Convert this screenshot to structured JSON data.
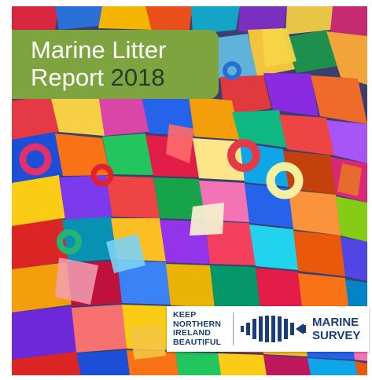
{
  "cover": {
    "title_line1": "Marine Litter",
    "title_line2": "Report",
    "title_year": "2018",
    "photo_description_icon": "plastic-litter-photo"
  },
  "logos": {
    "kni_line1": "KEEP",
    "kni_line2": "NORTHERN",
    "kni_line3": "IRELAND",
    "kni_line4": "BEAUTIFUL",
    "survey_line1": "MARINE",
    "survey_line2": "SURVEY",
    "survey_icon": "marine-survey-logo-icon"
  },
  "colors": {
    "title_bg": "#7ea43f",
    "title_text": "#ffffff",
    "year_text": "#243c2b",
    "brand_blue": "#173e7a"
  }
}
